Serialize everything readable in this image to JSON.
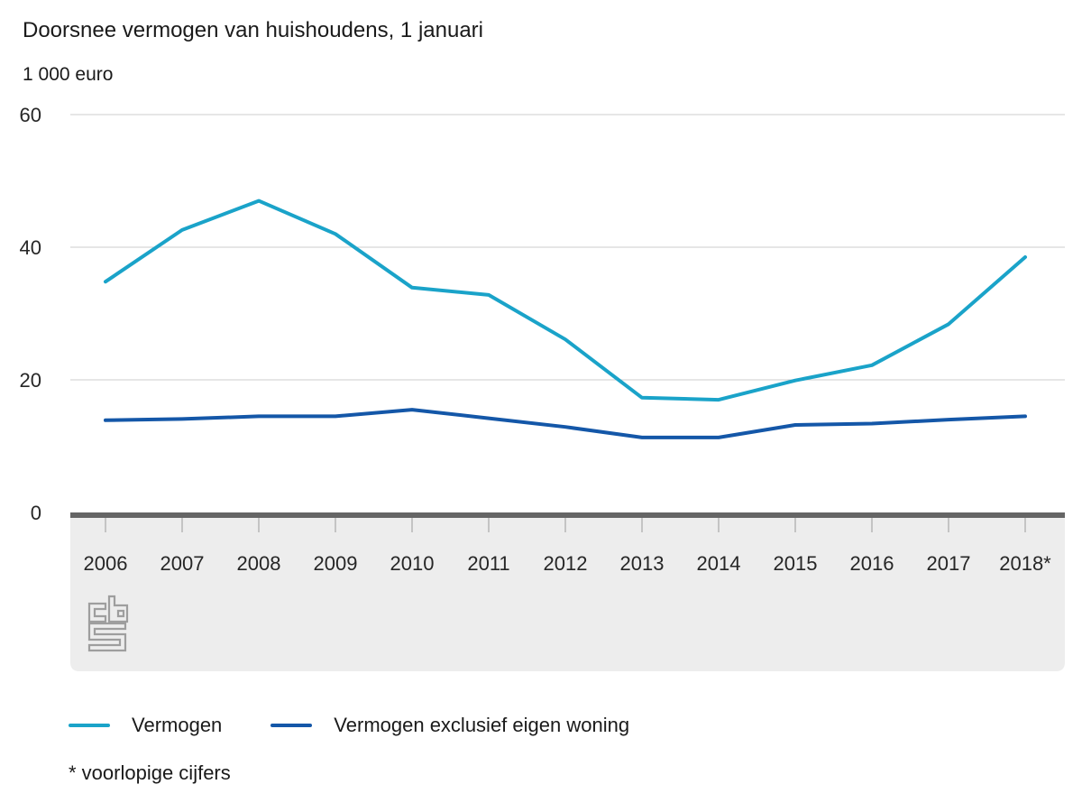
{
  "header": {
    "title": "Doorsnee vermogen van huishoudens, 1 januari",
    "unit": "1 000 euro"
  },
  "chart_data": {
    "type": "line",
    "title": "Doorsnee vermogen van huishoudens, 1 januari",
    "ylabel": "1 000 euro",
    "xlabel": "",
    "categories": [
      "2006",
      "2007",
      "2008",
      "2009",
      "2010",
      "2011",
      "2012",
      "2013",
      "2014",
      "2015",
      "2016",
      "2017",
      "2018*"
    ],
    "series": [
      {
        "name": "Vermogen",
        "color": "#1aa3c9",
        "values": [
          34.8,
          42.6,
          47.0,
          42.0,
          33.9,
          32.8,
          26.1,
          17.3,
          17.0,
          19.9,
          22.2,
          28.4,
          38.5
        ]
      },
      {
        "name": "Vermogen exclusief eigen woning",
        "color": "#1457a8",
        "values": [
          13.9,
          14.1,
          14.5,
          14.5,
          15.5,
          14.2,
          12.9,
          11.3,
          11.3,
          13.2,
          13.4,
          14.0,
          14.5
        ]
      }
    ],
    "y_axis": {
      "ticks": [
        0,
        20,
        40,
        60
      ],
      "range": [
        0,
        60
      ],
      "gridlines": true
    },
    "legend_position": "bottom",
    "footnote": "* voorlopige cijfers"
  },
  "legend": {
    "items": [
      {
        "label": "Vermogen",
        "color": "#1aa3c9"
      },
      {
        "label": "Vermogen exclusief eigen woning",
        "color": "#1457a8"
      }
    ]
  },
  "footnote": {
    "text": "* voorlopige cijfers"
  },
  "branding": {
    "logo_name": "cbs-logo"
  },
  "colors": {
    "background": "#ffffff",
    "grid": "#cccccc",
    "axis_bar": "#656565",
    "band": "#ededed",
    "tick": "#c4c4c4",
    "text": "#262626",
    "logo": "#9e9e9e"
  }
}
